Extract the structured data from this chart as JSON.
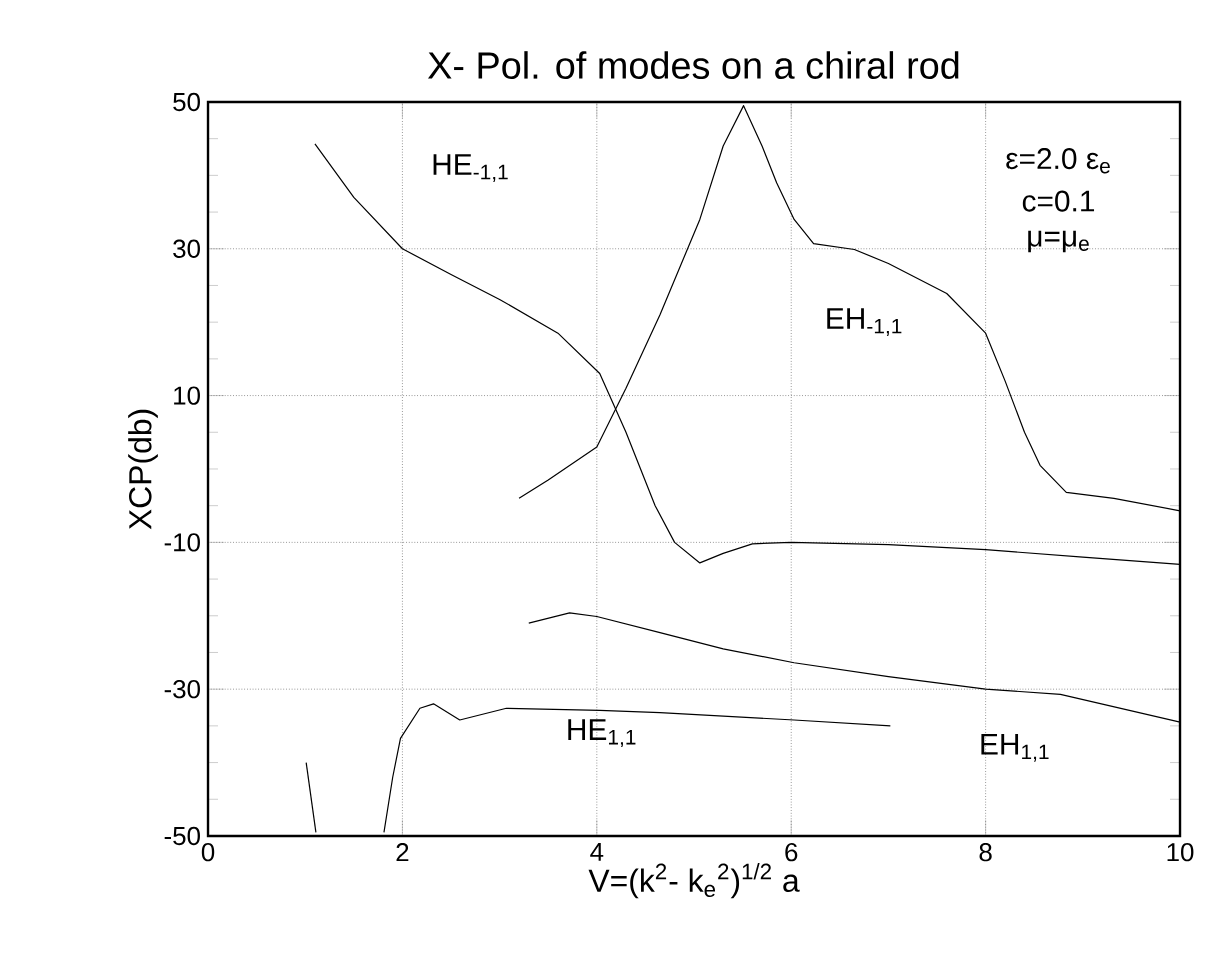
{
  "chart_data": {
    "type": "line",
    "title": "X- Pol. of modes on a chiral rod",
    "xlabel": "V=(k$^{2}$- k$_{e}$$^{2}$)$^{1/2}$ a",
    "ylabel": "XCP(db)",
    "xlim": [
      0,
      10
    ],
    "ylim": [
      -50,
      50
    ],
    "xticks": [
      0,
      2,
      4,
      6,
      8,
      10
    ],
    "yticks": [
      -50,
      -30,
      -10,
      10,
      30,
      50
    ],
    "grid": true,
    "annotations": [
      "ε=2.0 ε$_{e}$",
      "c=0.1",
      "μ=μ$_{e}$"
    ],
    "series": [
      {
        "name": "HE$_{-1,1}$",
        "color": "#000000",
        "x": [
          1.1,
          1.5,
          2.0,
          2.5,
          3.0,
          3.6,
          4.03,
          4.3,
          4.6,
          4.8,
          5.06,
          5.3,
          5.6,
          6.0,
          7.0,
          8.0,
          9.0,
          10.0
        ],
        "values": [
          44.3,
          37,
          30,
          26.5,
          23.1,
          18.5,
          13,
          5,
          -5,
          -10,
          -12.8,
          -11.5,
          -10.2,
          -10,
          -10.3,
          -11,
          -12,
          -13
        ]
      },
      {
        "name": "EH$_{-1,1}$",
        "color": "#000000",
        "x": [
          3.2,
          3.5,
          4.0,
          4.3,
          4.65,
          5.06,
          5.3,
          5.51,
          5.7,
          5.85,
          6.03,
          6.23,
          6.65,
          7.0,
          7.6,
          8.0,
          8.2,
          8.4,
          8.56,
          8.83,
          9.32,
          10.0
        ],
        "values": [
          -4,
          -1.5,
          3,
          11,
          21,
          34,
          44,
          49.5,
          44,
          39,
          34,
          30.7,
          29.9,
          28,
          23.9,
          18.5,
          12,
          5,
          0.5,
          -3.2,
          -4,
          -5.7
        ]
      },
      {
        "name": "EH$_{1,1}$",
        "color": "#000000",
        "x": [
          3.3,
          3.72,
          4.0,
          4.65,
          5.3,
          6.03,
          7.0,
          8.0,
          8.77,
          10.0
        ],
        "values": [
          -21,
          -19.6,
          -20.1,
          -22.3,
          -24.5,
          -26.4,
          -28.3,
          -30,
          -30.7,
          -34.5
        ]
      },
      {
        "name": "HE$_{1,1}$",
        "color": "#000000",
        "x": [
          1.81,
          1.9,
          1.98,
          2.18,
          2.32,
          2.59,
          3.07,
          4.03,
          4.65,
          6.03,
          7.02
        ],
        "values": [
          -49.5,
          -42,
          -36.7,
          -32.6,
          -32,
          -34.2,
          -32.6,
          -32.9,
          -33.2,
          -34.2,
          -35
        ]
      },
      {
        "color": "#000000",
        "x": [
          1.01,
          1.11
        ],
        "values": [
          -40,
          -49.5
        ]
      }
    ]
  }
}
